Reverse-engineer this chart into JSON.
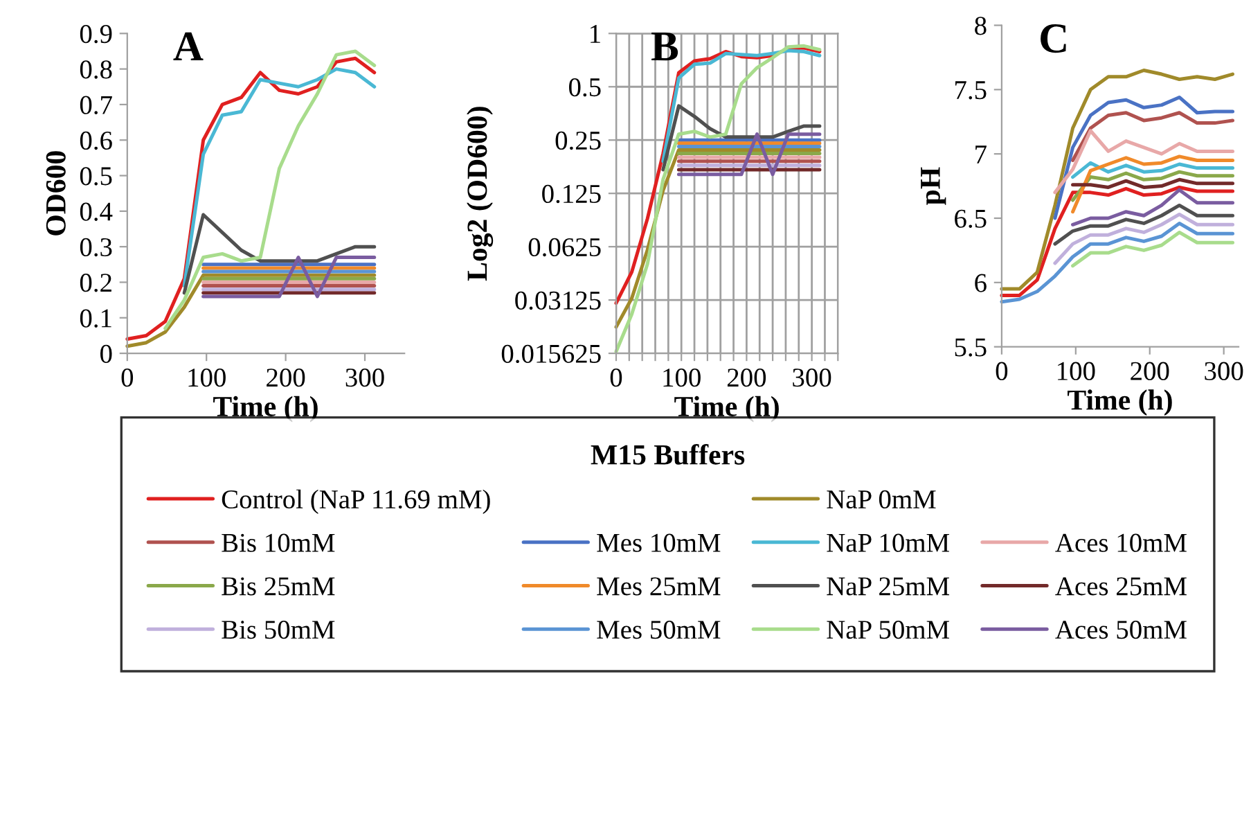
{
  "chart_data": [
    {
      "type": "line",
      "title": "A",
      "xlabel": "Time (h)",
      "ylabel": "OD600",
      "legend_title": "M15 Buffers",
      "legend": "bottom",
      "grid": false,
      "line_style": "solid",
      "marker": "none",
      "x": [
        0,
        24,
        48,
        72,
        96,
        120,
        144,
        168,
        192,
        216,
        240,
        264,
        288,
        312
      ],
      "xlim": [
        0,
        350
      ],
      "xticks": [
        0,
        100,
        200,
        300
      ],
      "ylim": [
        0,
        0.9
      ],
      "yticks": [
        0,
        0.1,
        0.2,
        0.3,
        0.4,
        0.5,
        0.6,
        0.7,
        0.8,
        0.9
      ],
      "series": [
        {
          "name": "Control (NaP 11.69 mM)",
          "color": "#e02020",
          "values": [
            0.04,
            0.05,
            0.09,
            0.21,
            0.6,
            0.7,
            0.72,
            0.79,
            0.74,
            0.73,
            0.75,
            0.82,
            0.83,
            0.79
          ]
        },
        {
          "name": "NaP 0mM",
          "color": "#a08a2a",
          "values": [
            0.02,
            0.03,
            0.06,
            0.13,
            0.22,
            0.22,
            0.22,
            0.22,
            0.22,
            0.22,
            0.22,
            0.22,
            0.22,
            0.22
          ]
        },
        {
          "name": "Bis 10mM",
          "color": "#b0524f",
          "values": [
            null,
            null,
            null,
            null,
            0.19,
            0.19,
            0.19,
            0.19,
            0.19,
            0.19,
            0.19,
            0.19,
            0.19,
            0.19
          ]
        },
        {
          "name": "Mes 10mM",
          "color": "#4a72c4",
          "values": [
            null,
            null,
            null,
            null,
            0.25,
            0.25,
            0.25,
            0.25,
            0.25,
            0.25,
            0.25,
            0.25,
            0.25,
            0.25
          ]
        },
        {
          "name": "NaP 10mM",
          "color": "#4ab8d4",
          "values": [
            null,
            null,
            null,
            0.19,
            0.56,
            0.67,
            0.68,
            0.77,
            0.76,
            0.75,
            0.77,
            0.8,
            0.79,
            0.75
          ]
        },
        {
          "name": "Aces 10mM",
          "color": "#e8a8a8",
          "values": [
            null,
            null,
            null,
            null,
            0.2,
            0.2,
            0.2,
            0.2,
            0.2,
            0.2,
            0.2,
            0.2,
            0.2,
            0.2
          ]
        },
        {
          "name": "Bis 25mM",
          "color": "#8aa84a",
          "values": [
            null,
            null,
            null,
            null,
            0.21,
            0.21,
            0.21,
            0.21,
            0.21,
            0.21,
            0.21,
            0.21,
            0.21,
            0.21
          ]
        },
        {
          "name": "Mes 25mM",
          "color": "#f08a2a",
          "values": [
            null,
            null,
            null,
            null,
            0.24,
            0.24,
            0.24,
            0.24,
            0.24,
            0.24,
            0.24,
            0.24,
            0.24,
            0.24
          ]
        },
        {
          "name": "NaP 25mM",
          "color": "#505050",
          "values": [
            null,
            null,
            null,
            0.17,
            0.39,
            0.34,
            0.29,
            0.26,
            0.26,
            0.26,
            0.26,
            0.28,
            0.3,
            0.3
          ]
        },
        {
          "name": "Aces 25mM",
          "color": "#722a2a",
          "values": [
            null,
            null,
            null,
            null,
            0.17,
            0.17,
            0.17,
            0.17,
            0.17,
            0.17,
            0.17,
            0.17,
            0.17,
            0.17
          ]
        },
        {
          "name": "Bis 50mM",
          "color": "#c0b0dc",
          "values": [
            null,
            null,
            null,
            null,
            0.18,
            0.18,
            0.18,
            0.18,
            0.18,
            0.18,
            0.18,
            0.18,
            0.18,
            0.18
          ]
        },
        {
          "name": "Mes 50mM",
          "color": "#5a94d4",
          "values": [
            null,
            null,
            null,
            null,
            0.23,
            0.23,
            0.23,
            0.23,
            0.23,
            0.23,
            0.23,
            0.23,
            0.23,
            0.23
          ]
        },
        {
          "name": "NaP 50mM",
          "color": "#a8dc8c",
          "values": [
            null,
            null,
            0.07,
            0.15,
            0.27,
            0.28,
            0.26,
            0.27,
            0.52,
            0.64,
            0.73,
            0.84,
            0.85,
            0.81
          ]
        },
        {
          "name": "Aces 50mM",
          "color": "#7a5ca0",
          "values": [
            null,
            null,
            null,
            null,
            0.16,
            0.16,
            0.16,
            0.16,
            0.16,
            0.27,
            0.16,
            0.27,
            0.27,
            0.27
          ]
        }
      ]
    },
    {
      "type": "line",
      "title": "B",
      "xlabel": "Time (h)",
      "ylabel": "Log2 (OD600)",
      "grid": true,
      "log": "y",
      "line_style": "solid",
      "marker": "none",
      "x": [
        0,
        24,
        48,
        72,
        96,
        120,
        144,
        168,
        192,
        216,
        240,
        264,
        288,
        312
      ],
      "xlim": [
        0,
        340
      ],
      "xticks": [
        0,
        {
          "value": 20,
          "label": null
        },
        {
          "value": 40,
          "label": null
        },
        {
          "value": 60,
          "label": null
        },
        {
          "value": 80,
          "label": null
        },
        100,
        {
          "value": 120,
          "label": null
        },
        {
          "value": 140,
          "label": null
        },
        {
          "value": 160,
          "label": null
        },
        {
          "value": 180,
          "label": null
        },
        200,
        {
          "value": 220,
          "label": null
        },
        {
          "value": 240,
          "label": null
        },
        {
          "value": 260,
          "label": null
        },
        {
          "value": 280,
          "label": null
        },
        300,
        {
          "value": 320,
          "label": null
        },
        {
          "value": 340,
          "label": null
        }
      ],
      "ylim": [
        0.015625,
        1
      ],
      "yticks": [
        0.015625,
        0.03125,
        0.0625,
        0.125,
        0.25,
        0.5,
        1
      ],
      "series": [
        {
          "color": "#e02020",
          "values": [
            0.03,
            0.045,
            0.09,
            0.21,
            0.6,
            0.7,
            0.72,
            0.79,
            0.74,
            0.73,
            0.75,
            0.82,
            0.83,
            0.79
          ]
        },
        {
          "color": "#a08a2a",
          "values": [
            0.022,
            0.032,
            0.06,
            0.13,
            0.22,
            0.22,
            0.22,
            0.22,
            0.22,
            0.22,
            0.22,
            0.22,
            0.22,
            0.22
          ]
        },
        {
          "color": "#b0524f",
          "values": [
            null,
            null,
            null,
            null,
            0.19,
            0.19,
            0.19,
            0.19,
            0.19,
            0.19,
            0.19,
            0.19,
            0.19,
            0.19
          ]
        },
        {
          "color": "#4a72c4",
          "values": [
            null,
            null,
            null,
            null,
            0.25,
            0.25,
            0.25,
            0.25,
            0.25,
            0.25,
            0.25,
            0.25,
            0.25,
            0.25
          ]
        },
        {
          "color": "#4ab8d4",
          "values": [
            null,
            null,
            null,
            0.19,
            0.56,
            0.67,
            0.68,
            0.77,
            0.76,
            0.75,
            0.77,
            0.8,
            0.79,
            0.75
          ]
        },
        {
          "color": "#e8a8a8",
          "values": [
            null,
            null,
            null,
            null,
            0.2,
            0.2,
            0.2,
            0.2,
            0.2,
            0.2,
            0.2,
            0.2,
            0.2,
            0.2
          ]
        },
        {
          "color": "#8aa84a",
          "values": [
            null,
            null,
            null,
            null,
            0.21,
            0.21,
            0.21,
            0.21,
            0.21,
            0.21,
            0.21,
            0.21,
            0.21,
            0.21
          ]
        },
        {
          "color": "#f08a2a",
          "values": [
            null,
            null,
            null,
            null,
            0.24,
            0.24,
            0.24,
            0.24,
            0.24,
            0.24,
            0.24,
            0.24,
            0.24,
            0.24
          ]
        },
        {
          "color": "#505050",
          "values": [
            null,
            null,
            null,
            0.17,
            0.39,
            0.34,
            0.29,
            0.26,
            0.26,
            0.26,
            0.26,
            0.28,
            0.3,
            0.3
          ]
        },
        {
          "color": "#722a2a",
          "values": [
            null,
            null,
            null,
            null,
            0.17,
            0.17,
            0.17,
            0.17,
            0.17,
            0.17,
            0.17,
            0.17,
            0.17,
            0.17
          ]
        },
        {
          "color": "#c0b0dc",
          "values": [
            null,
            null,
            null,
            null,
            0.18,
            0.18,
            0.18,
            0.18,
            0.18,
            0.18,
            0.18,
            0.18,
            0.18,
            0.18
          ]
        },
        {
          "color": "#5a94d4",
          "values": [
            null,
            null,
            null,
            null,
            0.23,
            0.23,
            0.23,
            0.23,
            0.23,
            0.23,
            0.23,
            0.23,
            0.23,
            0.23
          ]
        },
        {
          "color": "#a8dc8c",
          "values": [
            0.016,
            0.026,
            0.05,
            0.15,
            0.27,
            0.28,
            0.26,
            0.27,
            0.52,
            0.64,
            0.73,
            0.84,
            0.85,
            0.81
          ]
        },
        {
          "color": "#7a5ca0",
          "values": [
            null,
            null,
            null,
            null,
            0.16,
            0.16,
            0.16,
            0.16,
            0.16,
            0.27,
            0.16,
            0.27,
            0.27,
            0.27
          ]
        }
      ]
    },
    {
      "type": "line",
      "title": "C",
      "xlabel": "Time (h)",
      "ylabel": "pH",
      "grid": false,
      "line_style": "solid",
      "marker": "none",
      "x": [
        0,
        24,
        48,
        72,
        96,
        120,
        144,
        168,
        192,
        216,
        240,
        264,
        288,
        312
      ],
      "xlim": [
        0,
        320
      ],
      "xticks": [
        0,
        100,
        200,
        300
      ],
      "ylim": [
        5.5,
        8
      ],
      "yticks": [
        5.5,
        6,
        6.5,
        7,
        7.5,
        8
      ],
      "series": [
        {
          "color": "#e02020",
          "values": [
            5.9,
            5.9,
            6.02,
            6.42,
            6.7,
            6.7,
            6.68,
            6.73,
            6.68,
            6.69,
            6.74,
            6.71,
            6.71,
            6.71
          ]
        },
        {
          "color": "#a08a2a",
          "values": [
            5.95,
            5.95,
            6.08,
            6.6,
            7.2,
            7.5,
            7.6,
            7.6,
            7.65,
            7.62,
            7.58,
            7.6,
            7.58,
            7.62
          ]
        },
        {
          "color": "#b0524f",
          "values": [
            null,
            null,
            null,
            null,
            6.95,
            7.2,
            7.3,
            7.32,
            7.26,
            7.28,
            7.32,
            7.24,
            7.24,
            7.26
          ]
        },
        {
          "color": "#4a72c4",
          "values": [
            null,
            null,
            null,
            6.5,
            7.05,
            7.3,
            7.4,
            7.42,
            7.36,
            7.38,
            7.44,
            7.32,
            7.33,
            7.33
          ]
        },
        {
          "color": "#4ab8d4",
          "values": [
            null,
            null,
            null,
            null,
            6.82,
            6.93,
            6.86,
            6.91,
            6.86,
            6.87,
            6.92,
            6.89,
            6.89,
            6.89
          ]
        },
        {
          "color": "#e8a8a8",
          "values": [
            null,
            null,
            null,
            6.7,
            6.88,
            7.18,
            7.02,
            7.1,
            7.05,
            7.0,
            7.08,
            7.02,
            7.02,
            7.02
          ]
        },
        {
          "color": "#8aa84a",
          "values": [
            null,
            null,
            null,
            null,
            6.64,
            6.82,
            6.8,
            6.85,
            6.8,
            6.81,
            6.86,
            6.83,
            6.83,
            6.83
          ]
        },
        {
          "color": "#f08a2a",
          "values": [
            null,
            null,
            null,
            null,
            6.55,
            6.87,
            6.92,
            6.97,
            6.92,
            6.93,
            6.98,
            6.95,
            6.95,
            6.95
          ]
        },
        {
          "color": "#505050",
          "values": [
            null,
            null,
            null,
            6.3,
            6.4,
            6.44,
            6.44,
            6.49,
            6.46,
            6.52,
            6.6,
            6.52,
            6.52,
            6.52
          ]
        },
        {
          "color": "#722a2a",
          "values": [
            null,
            null,
            null,
            null,
            6.76,
            6.76,
            6.74,
            6.79,
            6.74,
            6.75,
            6.8,
            6.77,
            6.77,
            6.77
          ]
        },
        {
          "color": "#c0b0dc",
          "values": [
            null,
            null,
            null,
            6.15,
            6.3,
            6.37,
            6.37,
            6.42,
            6.39,
            6.45,
            6.53,
            6.45,
            6.45,
            6.45
          ]
        },
        {
          "color": "#5a94d4",
          "values": [
            5.85,
            5.87,
            5.93,
            6.05,
            6.2,
            6.3,
            6.3,
            6.35,
            6.32,
            6.36,
            6.46,
            6.38,
            6.38,
            6.38
          ]
        },
        {
          "color": "#a8dc8c",
          "values": [
            null,
            null,
            null,
            null,
            6.13,
            6.23,
            6.23,
            6.28,
            6.25,
            6.29,
            6.39,
            6.31,
            6.31,
            6.31
          ]
        },
        {
          "color": "#7a5ca0",
          "values": [
            null,
            null,
            null,
            null,
            6.45,
            6.5,
            6.5,
            6.55,
            6.52,
            6.6,
            6.72,
            6.62,
            6.62,
            6.62
          ]
        }
      ]
    }
  ]
}
